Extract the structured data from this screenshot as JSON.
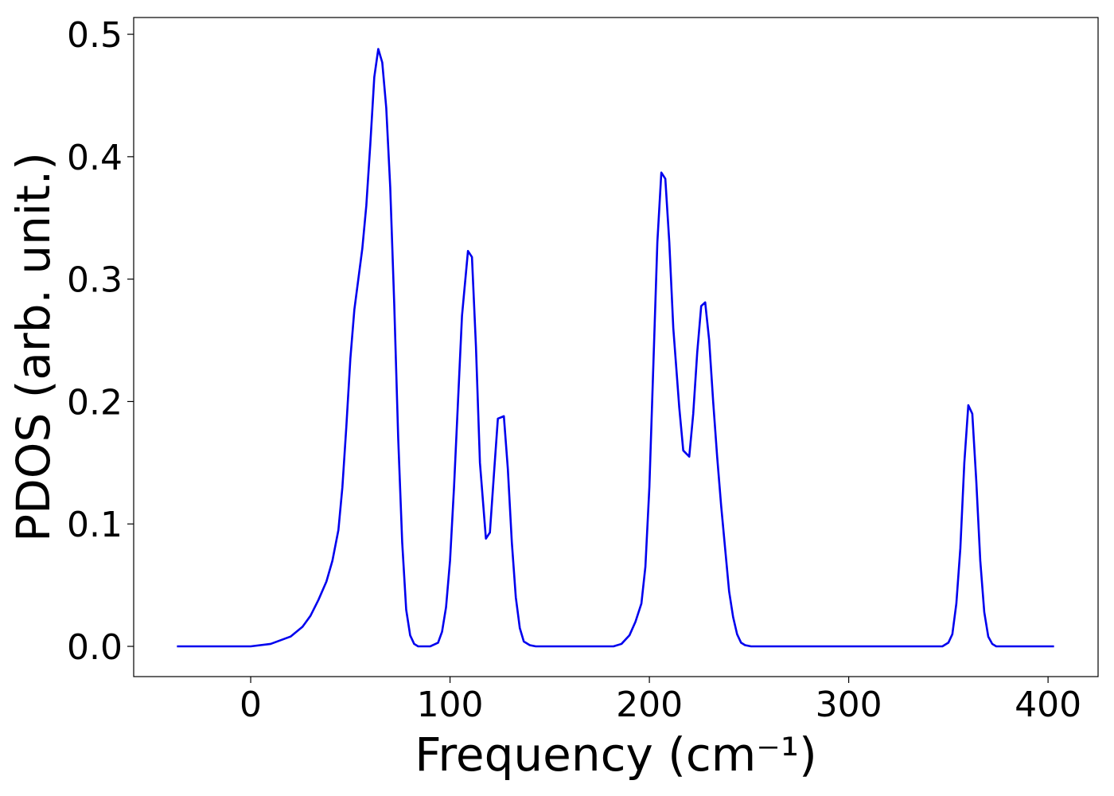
{
  "chart_data": {
    "type": "line",
    "xlabel": "Frequency (cm⁻¹)",
    "ylabel": "PDOS (arb. unit.)",
    "xlim": [
      -58.7,
      425.1
    ],
    "ylim": [
      -0.0247,
      0.5137
    ],
    "xticks": [
      0,
      100,
      200,
      300,
      400
    ],
    "yticks": [
      {
        "value": 0,
        "label": "0.0"
      },
      0.1,
      0.2,
      0.3,
      0.4,
      0.5
    ],
    "grid": false,
    "series": [
      {
        "color": "#0000ee",
        "x": [
          -37,
          0,
          10,
          20,
          26,
          30,
          34,
          38,
          41,
          44,
          46,
          48,
          50,
          52,
          54,
          56,
          58,
          60,
          62,
          64,
          66,
          68,
          70,
          72,
          74,
          76,
          78,
          80,
          82,
          84,
          90,
          94,
          96,
          98,
          100,
          102,
          104,
          106,
          109,
          111,
          113,
          115,
          118,
          120,
          122,
          124,
          127,
          129,
          131,
          133,
          135,
          137,
          140,
          143,
          182,
          186,
          190,
          193,
          196,
          198,
          200,
          202,
          204,
          206,
          208,
          210,
          212,
          215,
          217,
          220,
          222,
          224,
          226,
          228,
          230,
          232,
          234,
          236,
          238,
          240,
          242,
          244,
          246,
          248,
          251,
          347,
          350,
          352,
          354,
          356,
          358,
          360,
          362,
          364,
          366,
          368,
          370,
          372,
          374,
          403
        ],
        "values": [
          0,
          0,
          0.002,
          0.008,
          0.016,
          0.025,
          0.038,
          0.053,
          0.07,
          0.095,
          0.13,
          0.18,
          0.235,
          0.275,
          0.3,
          0.325,
          0.36,
          0.41,
          0.465,
          0.488,
          0.477,
          0.44,
          0.375,
          0.28,
          0.17,
          0.085,
          0.03,
          0.009,
          0.002,
          0,
          0,
          0.003,
          0.012,
          0.032,
          0.07,
          0.13,
          0.2,
          0.27,
          0.323,
          0.318,
          0.245,
          0.15,
          0.088,
          0.093,
          0.14,
          0.186,
          0.188,
          0.145,
          0.085,
          0.04,
          0.015,
          0.004,
          0.001,
          0,
          0,
          0.002,
          0.009,
          0.02,
          0.035,
          0.065,
          0.13,
          0.23,
          0.33,
          0.387,
          0.382,
          0.33,
          0.26,
          0.195,
          0.16,
          0.155,
          0.19,
          0.24,
          0.278,
          0.281,
          0.25,
          0.2,
          0.155,
          0.115,
          0.08,
          0.045,
          0.024,
          0.01,
          0.003,
          0.001,
          0,
          0,
          0.003,
          0.01,
          0.035,
          0.08,
          0.15,
          0.197,
          0.19,
          0.135,
          0.07,
          0.028,
          0.008,
          0.002,
          0,
          0
        ]
      }
    ]
  }
}
